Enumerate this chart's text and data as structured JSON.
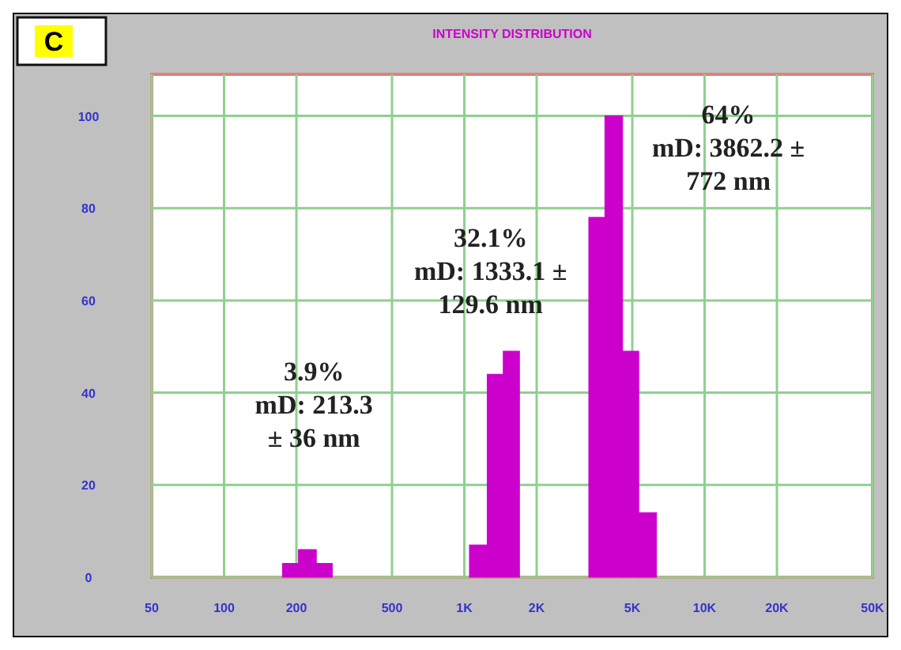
{
  "chart_data": {
    "type": "histogram",
    "title": "INTENSITY DISTRIBUTION",
    "bins": [
      175,
      204,
      242,
      282,
      1050,
      1245,
      1452,
      1696,
      3296,
      3845,
      4558,
      5320,
      6305
    ],
    "values": [
      3,
      6,
      3,
      0,
      7,
      44,
      49,
      0,
      78,
      100,
      49,
      14
    ],
    "color": "#cc00cc",
    "log": "x",
    "xlim": [
      50,
      50000
    ],
    "xticks": [
      50,
      100,
      200,
      500,
      {
        "value": 1000,
        "label": "1K"
      },
      {
        "value": 2000,
        "label": "2K"
      },
      {
        "value": 5000,
        "label": "5K"
      },
      {
        "value": 10000,
        "label": "10K"
      },
      {
        "value": 20000,
        "label": "20K"
      },
      {
        "value": 50000,
        "label": "50K"
      }
    ],
    "ylim": [
      0,
      109
    ],
    "yticks": [
      0,
      20,
      40,
      60,
      80,
      100
    ],
    "grid": true,
    "annotations": [
      "C",
      "3.9%\nmD: 213.3\n± 36 nm",
      "32.1%\nmD: 1333.1 ±\n129.6 nm",
      "64%\nmD: 3862.2 ±\n772 nm"
    ]
  }
}
